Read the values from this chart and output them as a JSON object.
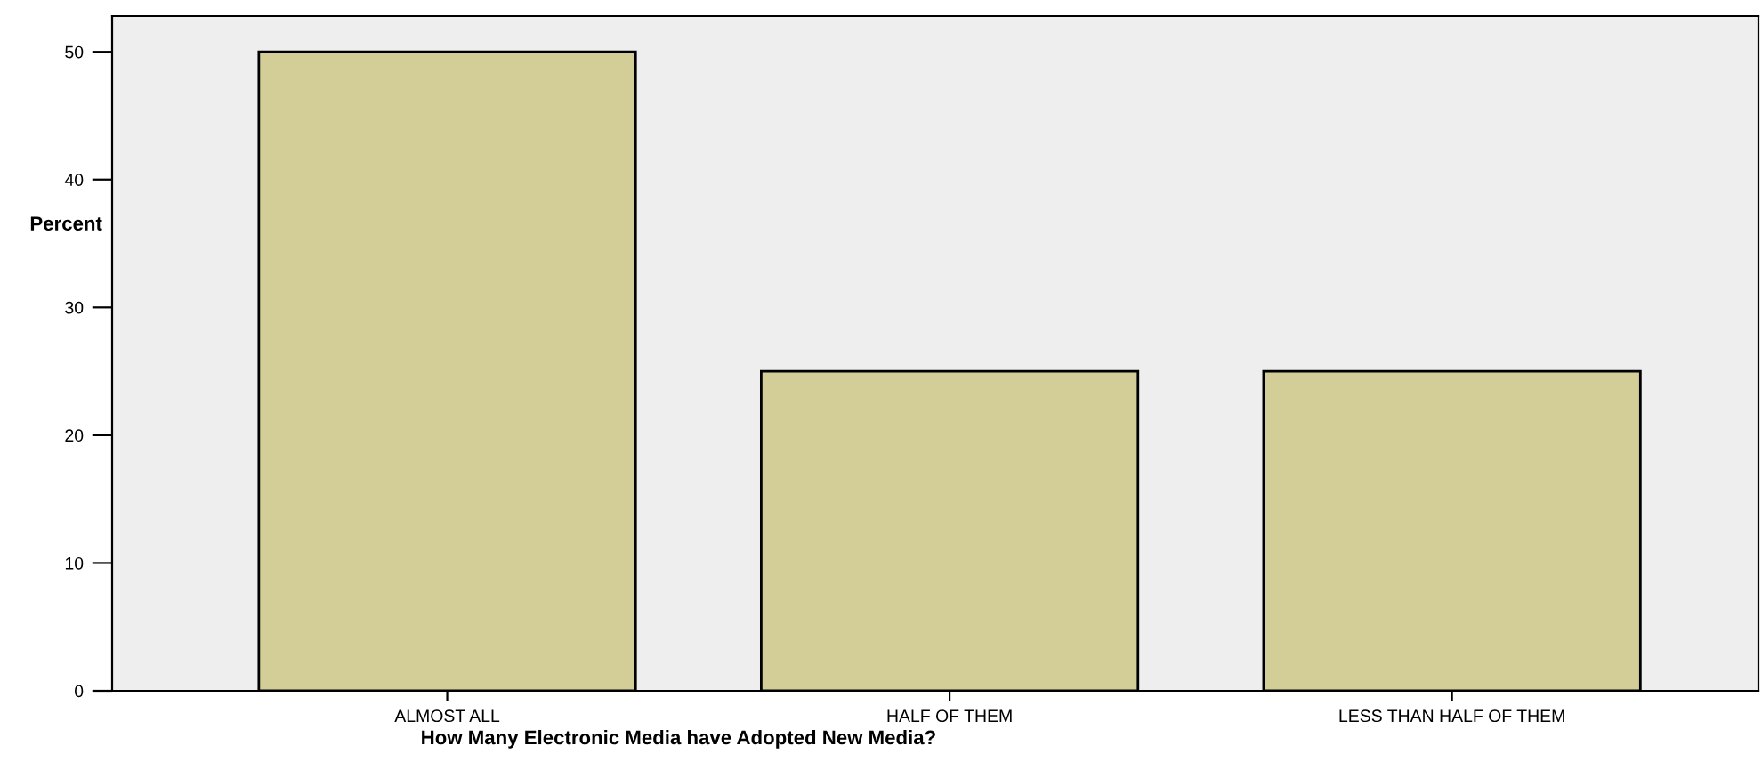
{
  "chart_data": {
    "type": "bar",
    "xlabel": "How Many Electronic Media have Adopted New Media?",
    "ylabel": "Percent",
    "categories": [
      "ALMOST ALL",
      "HALF OF THEM",
      "LESS THAN HALF OF THEM"
    ],
    "values": [
      50,
      25,
      25
    ],
    "color": "#d3cd98",
    "ylim": [
      0,
      52.8
    ],
    "yticks": [
      0,
      10,
      20,
      30,
      40,
      50
    ],
    "grid": false,
    "legend": false
  }
}
